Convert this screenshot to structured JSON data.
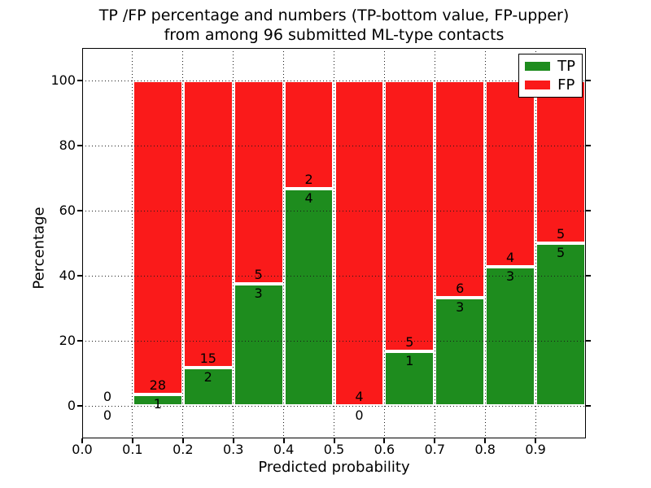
{
  "title": {
    "line1": "TP /FP percentage and numbers (TP-bottom value, FP-upper)",
    "line2": "from among 96 submitted ML-type contacts"
  },
  "axes": {
    "ylabel": "Percentage",
    "xlabel": "Predicted probability"
  },
  "legend": {
    "items": [
      {
        "label": "TP",
        "color": "#1e8c1e"
      },
      {
        "label": "FP",
        "color": "#fa1a1a"
      }
    ]
  },
  "colors": {
    "tp_green": "#1e8c1e",
    "fp_red": "#fa1a1a",
    "grid": "#1a1a1a",
    "spine": "#000000",
    "background": "#ffffff"
  },
  "chart_data": {
    "type": "bar",
    "stacked": true,
    "normalized": "each bar stacked to 100%",
    "title": "TP /FP percentage and numbers (TP-bottom value, FP-upper) from among 96 submitted ML-type contacts",
    "xlabel": "Predicted probability",
    "ylabel": "Percentage",
    "xlim": [
      0.0,
      1.0
    ],
    "ylim": [
      -10,
      110
    ],
    "yticks": [
      0,
      20,
      40,
      60,
      80,
      100
    ],
    "xtick_values": [
      0.0,
      0.1,
      0.2,
      0.3,
      0.4,
      0.5,
      0.6,
      0.7,
      0.8,
      0.9
    ],
    "xtick_labels": [
      "0.0",
      "0.1",
      "0.2",
      "0.3",
      "0.4",
      "0.5",
      "0.6",
      "0.7",
      "0.8",
      "0.9"
    ],
    "grid": "dotted, on",
    "legend_position": "upper right",
    "total_contacts": 96,
    "series_note": "TP count shown below boundary, FP count shown above boundary in each bin",
    "bins": [
      {
        "range": [
          0.0,
          0.1
        ],
        "tp": 0,
        "fp": 0,
        "tp_pct": null,
        "tp_label": "0",
        "fp_label": "0"
      },
      {
        "range": [
          0.1,
          0.2
        ],
        "tp": 1,
        "fp": 28,
        "tp_pct": 3.45,
        "tp_label": "1",
        "fp_label": "28"
      },
      {
        "range": [
          0.2,
          0.3
        ],
        "tp": 2,
        "fp": 15,
        "tp_pct": 11.76,
        "tp_label": "2",
        "fp_label": "15"
      },
      {
        "range": [
          0.3,
          0.4
        ],
        "tp": 3,
        "fp": 5,
        "tp_pct": 37.5,
        "tp_label": "3",
        "fp_label": "5"
      },
      {
        "range": [
          0.4,
          0.5
        ],
        "tp": 4,
        "fp": 2,
        "tp_pct": 66.67,
        "tp_label": "4",
        "fp_label": "2"
      },
      {
        "range": [
          0.5,
          0.6
        ],
        "tp": 0,
        "fp": 4,
        "tp_pct": 0,
        "tp_label": "0",
        "fp_label": "4"
      },
      {
        "range": [
          0.6,
          0.7
        ],
        "tp": 1,
        "fp": 5,
        "tp_pct": 16.67,
        "tp_label": "1",
        "fp_label": "5"
      },
      {
        "range": [
          0.7,
          0.8
        ],
        "tp": 3,
        "fp": 6,
        "tp_pct": 33.33,
        "tp_label": "3",
        "fp_label": "6"
      },
      {
        "range": [
          0.8,
          0.9
        ],
        "tp": 3,
        "fp": 4,
        "tp_pct": 42.86,
        "tp_label": "3",
        "fp_label": "4"
      },
      {
        "range": [
          0.9,
          1.0
        ],
        "tp": 5,
        "fp": 5,
        "tp_pct": 50,
        "tp_label": "5",
        "fp_label": "5"
      }
    ]
  }
}
